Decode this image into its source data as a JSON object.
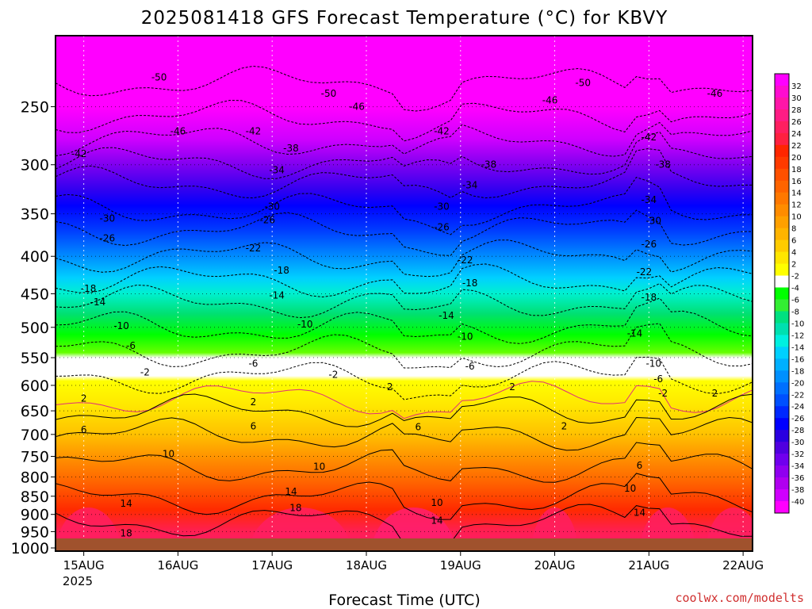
{
  "chart_data": {
    "type": "heatmap",
    "title": "2025081418 GFS Forecast Temperature (°C) for KBVY",
    "xlabel": "Forecast Time (UTC)",
    "ylabel": "",
    "credit": "coolwx.com/modelts",
    "x_ticks": [
      "15AUG",
      "16AUG",
      "17AUG",
      "18AUG",
      "19AUG",
      "20AUG",
      "21AUG",
      "22AUG"
    ],
    "x_year": "2025",
    "x_range_days": [
      0,
      7.4
    ],
    "y_ticks": [
      250,
      300,
      350,
      400,
      450,
      500,
      550,
      600,
      650,
      700,
      750,
      800,
      850,
      900,
      950,
      1000
    ],
    "y_range_hpa": [
      200,
      1010
    ],
    "y_scale": "log-pressure (inverted)",
    "grid": true,
    "colorbar": {
      "labels": [
        32,
        30,
        28,
        26,
        24,
        22,
        20,
        18,
        16,
        14,
        12,
        10,
        8,
        6,
        4,
        2,
        -2,
        -4,
        -6,
        -8,
        -10,
        -12,
        -14,
        -16,
        -18,
        -20,
        -22,
        -24,
        -26,
        -28,
        -30,
        -32,
        -34,
        -36,
        -38,
        -40
      ],
      "colors": [
        "#ff00ff",
        "#ff0cd0",
        "#ff16a8",
        "#ff1c84",
        "#ff1f60",
        "#ff2040",
        "#ff2600",
        "#ff3a00",
        "#ff5000",
        "#ff6400",
        "#ff7800",
        "#ff8c00",
        "#ffa000",
        "#ffb400",
        "#ffcc00",
        "#ffe600",
        "#ffff00",
        "#ffffff",
        "#00ff00",
        "#33ee33",
        "#00e080",
        "#00e0b0",
        "#00f0e0",
        "#00d0ff",
        "#00b0ff",
        "#0090ff",
        "#0070ff",
        "#0050ff",
        "#0028ff",
        "#0000ff",
        "#2a00e0",
        "#5000e0",
        "#7000ee",
        "#9000f0",
        "#b000f0",
        "#d000ff",
        "#ff00ff"
      ],
      "position": "right"
    },
    "contour_labels": [
      {
        "t": 1.1,
        "p": 228,
        "v": "-50"
      },
      {
        "t": 2.9,
        "p": 240,
        "v": "-50"
      },
      {
        "t": 5.6,
        "p": 232,
        "v": "-50"
      },
      {
        "t": 3.2,
        "p": 250,
        "v": "-46"
      },
      {
        "t": 1.3,
        "p": 270,
        "v": "-46"
      },
      {
        "t": 5.25,
        "p": 245,
        "v": "-46"
      },
      {
        "t": 7.0,
        "p": 240,
        "v": "-46"
      },
      {
        "t": 2.1,
        "p": 270,
        "v": "-42"
      },
      {
        "t": 4.1,
        "p": 270,
        "v": "-42"
      },
      {
        "t": 0.25,
        "p": 290,
        "v": "-42"
      },
      {
        "t": 6.3,
        "p": 275,
        "v": "-42"
      },
      {
        "t": 2.5,
        "p": 285,
        "v": "-38"
      },
      {
        "t": 4.6,
        "p": 300,
        "v": "-38"
      },
      {
        "t": 6.45,
        "p": 300,
        "v": "-38"
      },
      {
        "t": 2.35,
        "p": 305,
        "v": "-34"
      },
      {
        "t": 4.4,
        "p": 320,
        "v": "-34"
      },
      {
        "t": 6.3,
        "p": 335,
        "v": "-34"
      },
      {
        "t": 2.3,
        "p": 342,
        "v": "-30"
      },
      {
        "t": 4.1,
        "p": 342,
        "v": "-30"
      },
      {
        "t": 0.55,
        "p": 355,
        "v": "-30"
      },
      {
        "t": 6.35,
        "p": 358,
        "v": "-30"
      },
      {
        "t": 0.55,
        "p": 378,
        "v": "-26"
      },
      {
        "t": 2.25,
        "p": 357,
        "v": "-26"
      },
      {
        "t": 4.1,
        "p": 365,
        "v": "-26"
      },
      {
        "t": 6.3,
        "p": 385,
        "v": "-26"
      },
      {
        "t": 2.1,
        "p": 390,
        "v": "-22"
      },
      {
        "t": 4.35,
        "p": 405,
        "v": "-22"
      },
      {
        "t": 6.25,
        "p": 420,
        "v": "-22"
      },
      {
        "t": 2.4,
        "p": 418,
        "v": "-18"
      },
      {
        "t": 0.35,
        "p": 443,
        "v": "-18"
      },
      {
        "t": 4.4,
        "p": 435,
        "v": "-18"
      },
      {
        "t": 6.3,
        "p": 455,
        "v": "-18"
      },
      {
        "t": 0.45,
        "p": 462,
        "v": "-14"
      },
      {
        "t": 2.35,
        "p": 452,
        "v": "-14"
      },
      {
        "t": 4.15,
        "p": 482,
        "v": "-14"
      },
      {
        "t": 6.15,
        "p": 510,
        "v": "-14"
      },
      {
        "t": 0.7,
        "p": 498,
        "v": "-10"
      },
      {
        "t": 2.65,
        "p": 495,
        "v": "-10"
      },
      {
        "t": 4.35,
        "p": 515,
        "v": "-10"
      },
      {
        "t": 6.35,
        "p": 560,
        "v": "-10"
      },
      {
        "t": 0.8,
        "p": 530,
        "v": "-6"
      },
      {
        "t": 2.1,
        "p": 560,
        "v": "-6"
      },
      {
        "t": 4.4,
        "p": 565,
        "v": "-6"
      },
      {
        "t": 6.4,
        "p": 588,
        "v": "-6"
      },
      {
        "t": 0.95,
        "p": 576,
        "v": "-2"
      },
      {
        "t": 2.95,
        "p": 580,
        "v": "-2"
      },
      {
        "t": 6.45,
        "p": 615,
        "v": "-2"
      },
      {
        "t": 0.3,
        "p": 625,
        "v": "2"
      },
      {
        "t": 2.1,
        "p": 632,
        "v": "2"
      },
      {
        "t": 3.55,
        "p": 603,
        "v": "2"
      },
      {
        "t": 4.85,
        "p": 603,
        "v": "2"
      },
      {
        "t": 5.4,
        "p": 682,
        "v": "2"
      },
      {
        "t": 7.0,
        "p": 615,
        "v": "2"
      },
      {
        "t": 0.3,
        "p": 690,
        "v": "6"
      },
      {
        "t": 2.1,
        "p": 682,
        "v": "6"
      },
      {
        "t": 3.85,
        "p": 684,
        "v": "6"
      },
      {
        "t": 6.2,
        "p": 772,
        "v": "6"
      },
      {
        "t": 1.2,
        "p": 744,
        "v": "10"
      },
      {
        "t": 2.8,
        "p": 775,
        "v": "10"
      },
      {
        "t": 4.05,
        "p": 868,
        "v": "10"
      },
      {
        "t": 6.1,
        "p": 830,
        "v": "10"
      },
      {
        "t": 0.75,
        "p": 870,
        "v": "14"
      },
      {
        "t": 2.5,
        "p": 838,
        "v": "14"
      },
      {
        "t": 4.05,
        "p": 918,
        "v": "14"
      },
      {
        "t": 6.2,
        "p": 895,
        "v": "14"
      },
      {
        "t": 0.75,
        "p": 955,
        "v": "18"
      },
      {
        "t": 2.55,
        "p": 882,
        "v": "18"
      }
    ]
  }
}
